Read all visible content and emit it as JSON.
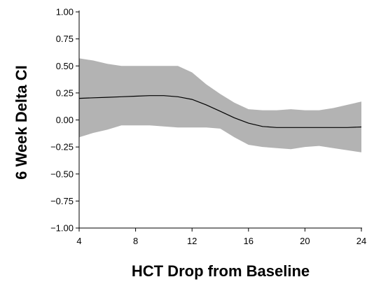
{
  "chart_data": {
    "type": "area",
    "xlabel": "HCT Drop from Baseline",
    "ylabel": "6 Week Delta CI",
    "xlim": [
      4,
      24
    ],
    "ylim": [
      -1.0,
      1.0
    ],
    "x_ticks": [
      4,
      8,
      12,
      16,
      20,
      24
    ],
    "x_tick_labels": [
      "4",
      "8",
      "12",
      "16",
      "20",
      "24"
    ],
    "y_ticks": [
      1.0,
      0.75,
      0.5,
      0.25,
      0.0,
      -0.25,
      -0.5,
      -0.75,
      -1.0
    ],
    "y_tick_labels": [
      "1.00",
      "0.75",
      "0.50",
      "0.25",
      "0.00",
      "−0.25",
      "−0.50",
      "−0.75",
      "−1.00"
    ],
    "grid": false,
    "colors": {
      "band": "#b3b3b3",
      "line": "#000000",
      "axis": "#000000"
    },
    "series": [
      {
        "role": "estimate",
        "x": [
          4,
          5,
          6,
          7,
          8,
          9,
          10,
          11,
          12,
          13,
          14,
          15,
          16,
          17,
          18,
          19,
          20,
          21,
          22,
          23,
          24
        ],
        "y": [
          0.2,
          0.205,
          0.21,
          0.215,
          0.22,
          0.225,
          0.225,
          0.215,
          0.19,
          0.14,
          0.08,
          0.02,
          -0.03,
          -0.06,
          -0.07,
          -0.07,
          -0.07,
          -0.07,
          -0.07,
          -0.07,
          -0.065
        ]
      },
      {
        "role": "upper_ci",
        "x": [
          4,
          5,
          6,
          7,
          8,
          9,
          10,
          11,
          12,
          13,
          14,
          15,
          16,
          17,
          18,
          19,
          20,
          21,
          22,
          23,
          24
        ],
        "y": [
          0.57,
          0.55,
          0.52,
          0.5,
          0.5,
          0.5,
          0.5,
          0.5,
          0.44,
          0.33,
          0.24,
          0.16,
          0.1,
          0.09,
          0.09,
          0.1,
          0.09,
          0.09,
          0.11,
          0.14,
          0.17
        ]
      },
      {
        "role": "lower_ci",
        "x": [
          4,
          5,
          6,
          7,
          8,
          9,
          10,
          11,
          12,
          13,
          14,
          15,
          16,
          17,
          18,
          19,
          20,
          21,
          22,
          23,
          24
        ],
        "y": [
          -0.16,
          -0.12,
          -0.09,
          -0.05,
          -0.05,
          -0.05,
          -0.06,
          -0.07,
          -0.07,
          -0.07,
          -0.08,
          -0.16,
          -0.23,
          -0.25,
          -0.26,
          -0.27,
          -0.25,
          -0.24,
          -0.26,
          -0.28,
          -0.3
        ]
      }
    ]
  }
}
